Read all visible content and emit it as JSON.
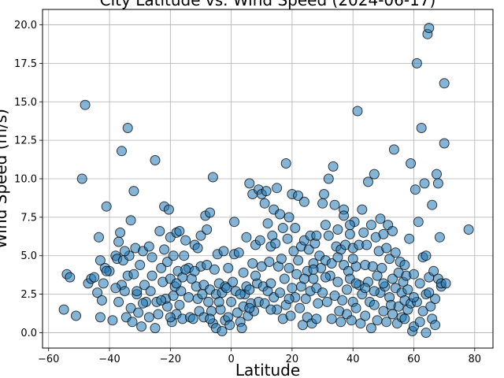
{
  "chart_data": {
    "type": "scatter",
    "title": "City Latitude vs. Wind Speed (2024-06-17)",
    "xlabel": "Latitude",
    "ylabel": "Wind Speed (m/s)",
    "xlim": [
      -62,
      86
    ],
    "ylim": [
      -1,
      21
    ],
    "xticks": [
      -60,
      -40,
      -20,
      0,
      20,
      40,
      60,
      80
    ],
    "yticks": [
      0.0,
      2.5,
      5.0,
      7.5,
      10.0,
      12.5,
      15.0,
      17.5,
      20.0
    ],
    "xtick_labels": [
      "−60",
      "−40",
      "−20",
      "0",
      "20",
      "40",
      "60",
      "80"
    ],
    "ytick_labels": [
      "0.0",
      "2.5",
      "5.0",
      "7.5",
      "10.0",
      "12.5",
      "15.0",
      "17.5",
      "20.0"
    ],
    "grid": true,
    "marker_color": "#1f77b4",
    "marker_edge_color": "#000000",
    "points": [
      [
        -55,
        1.5
      ],
      [
        -54,
        3.8
      ],
      [
        -53,
        3.6
      ],
      [
        -51,
        1.1
      ],
      [
        -49,
        10.0
      ],
      [
        -48,
        14.8
      ],
      [
        -47,
        3.2
      ],
      [
        -46,
        3.5
      ],
      [
        -45,
        3.6
      ],
      [
        -44,
        2.6
      ],
      [
        -43.5,
        6.2
      ],
      [
        -43,
        4.7
      ],
      [
        -43,
        1.0
      ],
      [
        -42.5,
        2.1
      ],
      [
        -42,
        3.2
      ],
      [
        -41.5,
        4.2
      ],
      [
        -41,
        8.2
      ],
      [
        -40,
        4.0
      ],
      [
        -39,
        0.8
      ],
      [
        -38,
        5.0
      ],
      [
        -37.5,
        4.8
      ],
      [
        -37,
        2.0
      ],
      [
        -37,
        5.9
      ],
      [
        -36.5,
        6.5
      ],
      [
        -36,
        11.8
      ],
      [
        -36,
        3.1
      ],
      [
        -35.5,
        4.7
      ],
      [
        -35,
        2.7
      ],
      [
        -34.5,
        1.0
      ],
      [
        -34,
        13.3
      ],
      [
        -34,
        3.7
      ],
      [
        -33.5,
        5.0
      ],
      [
        -33,
        7.3
      ],
      [
        -33,
        1.6
      ],
      [
        -32.5,
        0.7
      ],
      [
        -32,
        9.2
      ],
      [
        -32,
        3.8
      ],
      [
        -31.5,
        5.5
      ],
      [
        -31,
        2.5
      ],
      [
        -30.5,
        1.3
      ],
      [
        -30,
        4.4
      ],
      [
        -29.5,
        0.4
      ],
      [
        -29,
        5.3
      ],
      [
        -28.5,
        3.1
      ],
      [
        -28,
        2.0
      ],
      [
        -27,
        5.6
      ],
      [
        -26.5,
        2.7
      ],
      [
        -26,
        3.7
      ],
      [
        -25,
        11.2
      ],
      [
        -25,
        0.3
      ],
      [
        -24.5,
        2.0
      ],
      [
        -24,
        1.2
      ],
      [
        -23.5,
        6.6
      ],
      [
        -23,
        4.2
      ],
      [
        -22.5,
        3.3
      ],
      [
        -22,
        8.2
      ],
      [
        -22,
        5.4
      ],
      [
        -21.5,
        2.2
      ],
      [
        -21,
        1.7
      ],
      [
        -21,
        4.6
      ],
      [
        -20.5,
        8.0
      ],
      [
        -20,
        3.5
      ],
      [
        -20,
        6.2
      ],
      [
        -19.5,
        0.7
      ],
      [
        -19,
        5.0
      ],
      [
        -19,
        2.4
      ],
      [
        -18.5,
        3.0
      ],
      [
        -18,
        6.5
      ],
      [
        -18,
        1.2
      ],
      [
        -17.5,
        4.0
      ],
      [
        -17,
        1.8
      ],
      [
        -17,
        6.6
      ],
      [
        -16.5,
        2.7
      ],
      [
        -16,
        0.9
      ],
      [
        -16,
        3.6
      ],
      [
        -15.5,
        5.0
      ],
      [
        -15,
        6.0
      ],
      [
        -14,
        2.3
      ],
      [
        -14,
        4.2
      ],
      [
        -13.5,
        1.0
      ],
      [
        -13,
        3.5
      ],
      [
        -12.5,
        0.9
      ],
      [
        -12,
        5.7
      ],
      [
        -11.5,
        3.0
      ],
      [
        -11,
        5.5
      ],
      [
        -11,
        2.2
      ],
      [
        -10.5,
        1.4
      ],
      [
        -10,
        6.3
      ],
      [
        -10,
        4.3
      ],
      [
        -9.5,
        2.5
      ],
      [
        -9,
        3.1
      ],
      [
        -9,
        1.0
      ],
      [
        -8.5,
        7.6
      ],
      [
        -8,
        6.7
      ],
      [
        -8,
        4.4
      ],
      [
        -7.5,
        2.0
      ],
      [
        -7,
        7.8
      ],
      [
        -7,
        2.8
      ],
      [
        -6.5,
        1.4
      ],
      [
        -6,
        10.1
      ],
      [
        -6,
        0.6
      ],
      [
        -5.5,
        4.1
      ],
      [
        -5,
        2.5
      ],
      [
        -5,
        0.3
      ],
      [
        -4.5,
        5.1
      ],
      [
        -4,
        3.2
      ],
      [
        -3.5,
        1.5
      ],
      [
        -3,
        0.1
      ],
      [
        -3,
        2.6
      ],
      [
        -2.5,
        5.3
      ],
      [
        -2,
        3.0
      ],
      [
        -2,
        0.8
      ],
      [
        -1.5,
        2.9
      ],
      [
        -1,
        4.2
      ],
      [
        -1,
        1.0
      ],
      [
        -0.5,
        0.5
      ],
      [
        0,
        2.0
      ],
      [
        0.5,
        3.3
      ],
      [
        1,
        5.1
      ],
      [
        1,
        7.2
      ],
      [
        1.5,
        2.7
      ],
      [
        2,
        1.3
      ],
      [
        2.5,
        5.2
      ],
      [
        3,
        0.7
      ],
      [
        3.5,
        0.3
      ],
      [
        4,
        1.7
      ],
      [
        4.5,
        2.5
      ],
      [
        5,
        3.0
      ],
      [
        5,
        6.2
      ],
      [
        5.5,
        1.1
      ],
      [
        6,
        9.7
      ],
      [
        6,
        2.8
      ],
      [
        6.5,
        1.9
      ],
      [
        7,
        9.0
      ],
      [
        7,
        4.5
      ],
      [
        7.5,
        1.4
      ],
      [
        8,
        5.7
      ],
      [
        8.5,
        3.2
      ],
      [
        9,
        9.3
      ],
      [
        9,
        2.0
      ],
      [
        9.5,
        6.0
      ],
      [
        10,
        9.0
      ],
      [
        10,
        4.3
      ],
      [
        10.5,
        3.0
      ],
      [
        11,
        8.4
      ],
      [
        11,
        1.9
      ],
      [
        11.5,
        9.2
      ],
      [
        12,
        7.1
      ],
      [
        12.5,
        4.6
      ],
      [
        13,
        5.6
      ],
      [
        13,
        3.2
      ],
      [
        13.5,
        6.3
      ],
      [
        14,
        8.0
      ],
      [
        14,
        2.3
      ],
      [
        14.5,
        5.8
      ],
      [
        15,
        9.4
      ],
      [
        15,
        1.5
      ],
      [
        15.5,
        4.3
      ],
      [
        16,
        7.7
      ],
      [
        16,
        2.6
      ],
      [
        16.5,
        4.8
      ],
      [
        17,
        6.8
      ],
      [
        17,
        0.9
      ],
      [
        17.5,
        3.5
      ],
      [
        18,
        11.0
      ],
      [
        18,
        1.8
      ],
      [
        18.5,
        6.1
      ],
      [
        19,
        4.2
      ],
      [
        19,
        7.5
      ],
      [
        19.5,
        1.1
      ],
      [
        20,
        2.9
      ],
      [
        20,
        9.0
      ],
      [
        20.5,
        5.3
      ],
      [
        21,
        6.8
      ],
      [
        21,
        2.3
      ],
      [
        21.5,
        3.8
      ],
      [
        22,
        8.9
      ],
      [
        22,
        4.7
      ],
      [
        22.5,
        1.6
      ],
      [
        23,
        5.6
      ],
      [
        23,
        3.0
      ],
      [
        23.5,
        0.5
      ],
      [
        24,
        8.5
      ],
      [
        24,
        6.0
      ],
      [
        24.5,
        2.2
      ],
      [
        25,
        4.0
      ],
      [
        25,
        1.0
      ],
      [
        25.5,
        5.4
      ],
      [
        26,
        6.3
      ],
      [
        26,
        2.7
      ],
      [
        26.5,
        0.6
      ],
      [
        27,
        4.5
      ],
      [
        27,
        3.5
      ],
      [
        27.5,
        5.8
      ],
      [
        28,
        6.3
      ],
      [
        28,
        2.9
      ],
      [
        28.5,
        1.9
      ],
      [
        29,
        5.0
      ],
      [
        29.5,
        4.2
      ],
      [
        30,
        8.4
      ],
      [
        30,
        2.6
      ],
      [
        30.5,
        9.0
      ],
      [
        31,
        7.0
      ],
      [
        31,
        4.7
      ],
      [
        31.5,
        2.0
      ],
      [
        32,
        10.0
      ],
      [
        32,
        6.3
      ],
      [
        32.5,
        3.7
      ],
      [
        33,
        4.5
      ],
      [
        33,
        0.9
      ],
      [
        33.5,
        10.8
      ],
      [
        34,
        8.3
      ],
      [
        34,
        2.4
      ],
      [
        34.5,
        5.6
      ],
      [
        35,
        6.7
      ],
      [
        35,
        3.3
      ],
      [
        35.5,
        1.4
      ],
      [
        36,
        5.4
      ],
      [
        36,
        0.7
      ],
      [
        36.5,
        2.1
      ],
      [
        37,
        8.0
      ],
      [
        37,
        4.4
      ],
      [
        37.5,
        5.7
      ],
      [
        38,
        2.8
      ],
      [
        38,
        1.2
      ],
      [
        38.5,
        4.0
      ],
      [
        39,
        6.4
      ],
      [
        39,
        3.5
      ],
      [
        39.5,
        0.8
      ],
      [
        40,
        5.5
      ],
      [
        40,
        2.0
      ],
      [
        40.5,
        7.2
      ],
      [
        41,
        4.3
      ],
      [
        41,
        1.6
      ],
      [
        41.5,
        14.4
      ],
      [
        42,
        5.7
      ],
      [
        42,
        3.1
      ],
      [
        42.5,
        0.6
      ],
      [
        43,
        8.0
      ],
      [
        43,
        2.5
      ],
      [
        43.5,
        6.5
      ],
      [
        44,
        4.4
      ],
      [
        44,
        1.1
      ],
      [
        44.5,
        5.7
      ],
      [
        45,
        3.3
      ],
      [
        45,
        9.8
      ],
      [
        45.5,
        2.0
      ],
      [
        46,
        7.0
      ],
      [
        46,
        0.3
      ],
      [
        46.5,
        4.3
      ],
      [
        47,
        10.3
      ],
      [
        47,
        1.8
      ],
      [
        47.5,
        6.2
      ],
      [
        48,
        3.7
      ],
      [
        48,
        0.8
      ],
      [
        48.5,
        5.3
      ],
      [
        49,
        7.4
      ],
      [
        49,
        2.6
      ],
      [
        49.5,
        4.2
      ],
      [
        50,
        6.4
      ],
      [
        50,
        1.4
      ],
      [
        50.5,
        3.0
      ],
      [
        51,
        5.5
      ],
      [
        51,
        0.7
      ],
      [
        51.5,
        7.0
      ],
      [
        52,
        2.3
      ],
      [
        52,
        4.8
      ],
      [
        52.5,
        1.8
      ],
      [
        53,
        6.6
      ],
      [
        53,
        3.5
      ],
      [
        53.5,
        11.9
      ],
      [
        54,
        2.9
      ],
      [
        54,
        5.2
      ],
      [
        54.5,
        0.6
      ],
      [
        55,
        3.9
      ],
      [
        55,
        1.7
      ],
      [
        55.5,
        4.6
      ],
      [
        56,
        2.6
      ],
      [
        56,
        1.0
      ],
      [
        56.5,
        3.3
      ],
      [
        57,
        2.1
      ],
      [
        57,
        0.9
      ],
      [
        57.5,
        3.7
      ],
      [
        58,
        1.5
      ],
      [
        58,
        2.8
      ],
      [
        58.5,
        6.1
      ],
      [
        59,
        11.0
      ],
      [
        59,
        1.9
      ],
      [
        59.5,
        0.1
      ],
      [
        60,
        3.8
      ],
      [
        60,
        0.4
      ],
      [
        60.5,
        9.3
      ],
      [
        61,
        17.5
      ],
      [
        61,
        2.0
      ],
      [
        61.5,
        7.2
      ],
      [
        62,
        3.2
      ],
      [
        62,
        0.7
      ],
      [
        62.5,
        13.3
      ],
      [
        63,
        4.9
      ],
      [
        63,
        1.4
      ],
      [
        63.5,
        9.7
      ],
      [
        64,
        5.0
      ],
      [
        64,
        2.5
      ],
      [
        64,
        0.0
      ],
      [
        64.5,
        19.4
      ],
      [
        65,
        19.8
      ],
      [
        65,
        3.6
      ],
      [
        65.5,
        1.7
      ],
      [
        66,
        8.3
      ],
      [
        66,
        0.9
      ],
      [
        66.5,
        4.0
      ],
      [
        67,
        2.2
      ],
      [
        67,
        0.5
      ],
      [
        67.5,
        10.3
      ],
      [
        68,
        9.7
      ],
      [
        68,
        3.5
      ],
      [
        68.5,
        6.2
      ],
      [
        69,
        3.0
      ],
      [
        69,
        3.2
      ],
      [
        70,
        16.2
      ],
      [
        70,
        12.3
      ],
      [
        70.5,
        3.2
      ],
      [
        78,
        6.7
      ],
      [
        41,
        3.2
      ],
      [
        40,
        4.8
      ],
      [
        37,
        7.6
      ],
      [
        27,
        4.1
      ],
      [
        24,
        3.5
      ],
      [
        19,
        2.2
      ],
      [
        13,
        1.5
      ],
      [
        8,
        3.7
      ],
      [
        6,
        1.6
      ],
      [
        4,
        3.9
      ],
      [
        -4,
        2.0
      ],
      [
        -12,
        4.0
      ],
      [
        -15,
        4.1
      ],
      [
        -18,
        3.2
      ],
      [
        -23,
        2.1
      ],
      [
        -26,
        4.9
      ],
      [
        -29,
        1.9
      ],
      [
        -31,
        2.7
      ],
      [
        -35,
        5.3
      ],
      [
        -38,
        2.9
      ],
      [
        -41,
        4.0
      ],
      [
        -27,
        1.0
      ],
      [
        -20,
        1.0
      ],
      [
        -7,
        0.9
      ],
      [
        3,
        2.5
      ],
      [
        12,
        2.7
      ],
      [
        28,
        0.9
      ],
      [
        31,
        3.6
      ],
      [
        35,
        4.9
      ],
      [
        39,
        7.0
      ],
      [
        44,
        2.9
      ],
      [
        47,
        2.7
      ],
      [
        50,
        3.2
      ],
      [
        53,
        1.2
      ],
      [
        57,
        4.4
      ],
      [
        60,
        2.3
      ],
      [
        65,
        2.6
      ]
    ]
  }
}
